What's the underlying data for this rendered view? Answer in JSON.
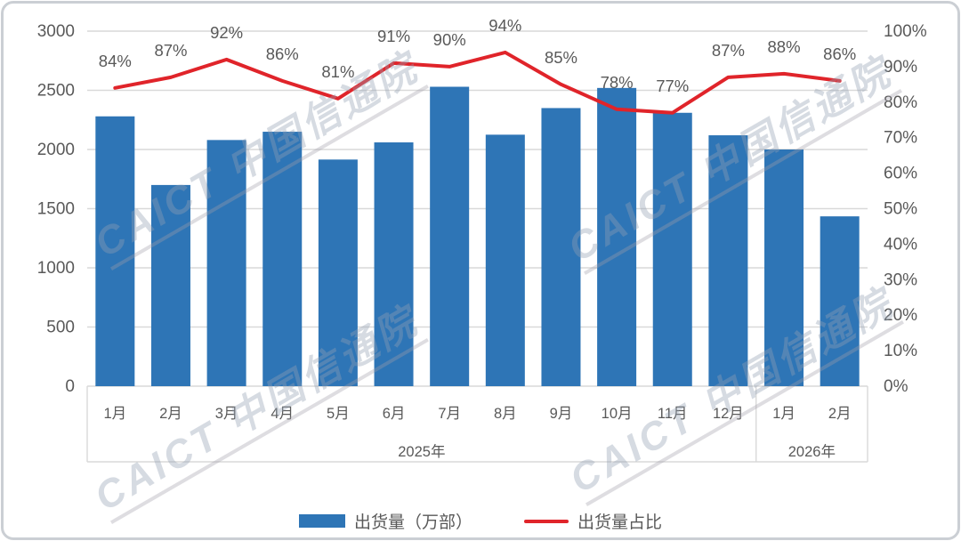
{
  "watermark": {
    "text": "CAICT 中国信通院"
  },
  "colors": {
    "bar": "#2E75B6",
    "line": "#E0242A",
    "grid": "#D9D9D9",
    "axis_text": "#595959",
    "frame_border": "#CBCFD4"
  },
  "legend": {
    "bar_label": "出货量（万部）",
    "line_label": "出货量占比"
  },
  "chart_data": {
    "type": "combo (bar + line)",
    "categories": [
      "1月",
      "2月",
      "3月",
      "4月",
      "5月",
      "6月",
      "7月",
      "8月",
      "9月",
      "10月",
      "11月",
      "12月",
      "1月",
      "2月"
    ],
    "year_groups": [
      {
        "label": "2025年",
        "months": 12
      },
      {
        "label": "2026年",
        "months": 2
      }
    ],
    "series": [
      {
        "name": "出货量（万部）",
        "type": "bar",
        "axis": "left",
        "color": "#2E75B6",
        "values": [
          2280,
          1700,
          2080,
          2150,
          1915,
          2060,
          2530,
          2125,
          2350,
          2520,
          2310,
          2120,
          2000,
          1435
        ]
      },
      {
        "name": "出货量占比",
        "type": "line",
        "axis": "right",
        "color": "#E0242A",
        "unit": "%",
        "values": [
          84,
          87,
          92,
          86,
          81,
          91,
          90,
          94,
          85,
          78,
          77,
          87,
          88,
          86
        ],
        "data_labels": [
          "84%",
          "87%",
          "92%",
          "86%",
          "81%",
          "91%",
          "90%",
          "94%",
          "85%",
          "78%",
          "77%",
          "87%",
          "88%",
          "86%"
        ]
      }
    ],
    "left_axis": {
      "min": 0,
      "max": 3000,
      "step": 500,
      "tick_labels": [
        "0",
        "500",
        "1000",
        "1500",
        "2000",
        "2500",
        "3000"
      ]
    },
    "right_axis": {
      "min": 0,
      "max": 100,
      "step": 10,
      "tick_labels": [
        "0%",
        "10%",
        "20%",
        "30%",
        "40%",
        "50%",
        "60%",
        "70%",
        "80%",
        "90%",
        "100%"
      ]
    },
    "grid": true,
    "legend_position": "bottom"
  }
}
